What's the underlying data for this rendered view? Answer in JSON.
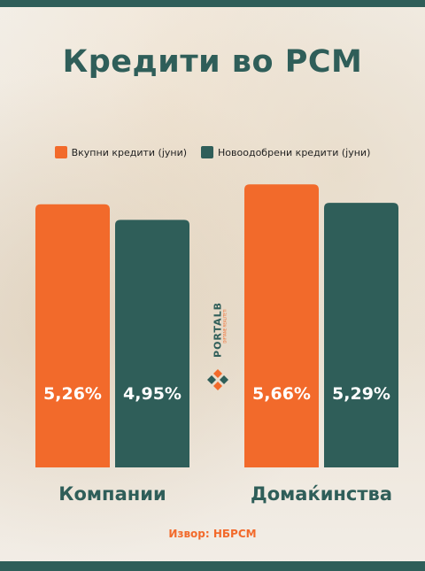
{
  "title": "Кредити во РСМ",
  "source": "Извор: НБРСМ",
  "logo": {
    "text": "PORTALB",
    "subtext": "DIFTANE REALITETI"
  },
  "colors": {
    "series1": "#f26a2b",
    "series2": "#2f5e59",
    "frame": "#2f5e59"
  },
  "chart_data": {
    "type": "bar",
    "categories": [
      "Компании",
      "Домаќинства"
    ],
    "series": [
      {
        "name": "Вкупни кредити (јуни)",
        "values": [
          5.26,
          5.66
        ],
        "labels": [
          "5,26%",
          "5,66%"
        ]
      },
      {
        "name": "Новоодобрени кредити (јуни)",
        "values": [
          4.95,
          5.29
        ],
        "labels": [
          "4,95%",
          "5,29%"
        ]
      }
    ],
    "legend": "top-center",
    "grid": false
  }
}
